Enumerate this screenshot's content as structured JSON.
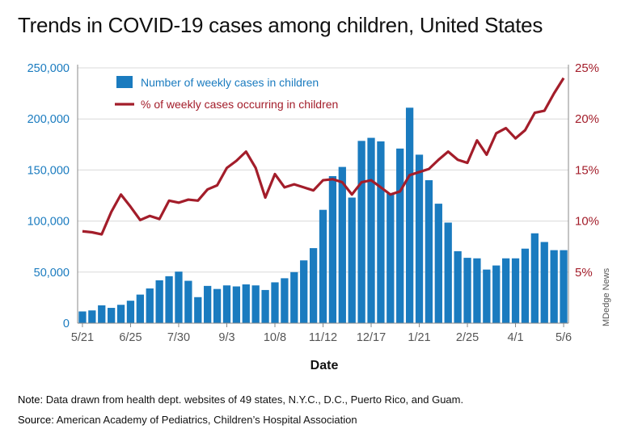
{
  "title": "Trends in COVID-19 cases among children, United States",
  "note_label": "Note:",
  "note_text": "Data drawn from health dept. websites of 49 states, N.Y.C., D.C., Puerto Rico, and Guam.",
  "source_label": "Source:",
  "source_text": "American Academy of Pediatrics, Children’s Hospital Association",
  "watermark": "MDedge News",
  "colors": {
    "bars": "#1a7bbf",
    "line": "#a31d2a",
    "left_axis": "#1a7bbf",
    "right_axis": "#a31d2a"
  },
  "chart_data": {
    "type": "bar+line",
    "xlabel": "Date",
    "x_tick_labels": [
      "5/21",
      "6/25",
      "7/30",
      "9/3",
      "10/8",
      "11/12",
      "12/17",
      "1/21",
      "2/25",
      "4/1",
      "5/6"
    ],
    "y_left": {
      "ticks": [
        "0",
        "50,000",
        "100,000",
        "150,000",
        "200,000",
        "250,000"
      ],
      "ylim": [
        0,
        250000
      ]
    },
    "y_right": {
      "ticks": [
        "5%",
        "10%",
        "15%",
        "20%",
        "25%"
      ],
      "ylim": [
        0,
        25
      ]
    },
    "legend": {
      "position": "top-left",
      "entries": [
        "Number of weekly cases in children",
        "% of weekly cases occurring in children"
      ]
    },
    "series": [
      {
        "name": "Number of weekly cases in children",
        "kind": "bar",
        "axis": "left",
        "values": [
          11500,
          12500,
          17500,
          15000,
          18000,
          22000,
          28000,
          34000,
          42000,
          46000,
          50500,
          41500,
          25500,
          36500,
          33500,
          37000,
          36000,
          38000,
          37000,
          32500,
          40000,
          44000,
          50000,
          61500,
          73500,
          111000,
          144000,
          153000,
          123000,
          178500,
          181500,
          178000,
          127000,
          171000,
          211000,
          165000,
          140000,
          117000,
          98500,
          70500,
          64000,
          63500,
          52500,
          56500,
          63500,
          63500,
          73000,
          88000,
          79500,
          71500,
          71500
        ]
      },
      {
        "name": "% of weekly cases occurring in children",
        "kind": "line",
        "axis": "right",
        "values": [
          9.0,
          8.9,
          8.7,
          10.9,
          12.6,
          11.4,
          10.1,
          10.5,
          10.2,
          12.0,
          11.8,
          12.1,
          12.0,
          13.1,
          13.5,
          15.2,
          15.9,
          16.8,
          15.2,
          12.3,
          14.6,
          13.3,
          13.6,
          13.3,
          13.0,
          14.0,
          14.1,
          13.8,
          12.6,
          13.8,
          14.0,
          13.3,
          12.6,
          12.9,
          14.5,
          14.8,
          15.1,
          16.0,
          16.8,
          16.0,
          15.7,
          17.9,
          16.5,
          18.6,
          19.1,
          18.1,
          18.9,
          20.6,
          20.8,
          22.5,
          24.0
        ]
      }
    ]
  }
}
